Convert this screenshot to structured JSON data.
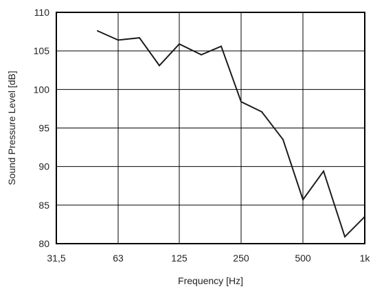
{
  "chart_data": {
    "type": "line",
    "title": "",
    "xlabel": "Frequency  [Hz]",
    "ylabel": "Sound Pressure Level  [dB]",
    "x_scale": "log2",
    "xlim": [
      31.5,
      1000
    ],
    "ylim": [
      80,
      110
    ],
    "x_ticks": [
      {
        "value": 31.5,
        "label": "31,5"
      },
      {
        "value": 63,
        "label": "63"
      },
      {
        "value": 125,
        "label": "125"
      },
      {
        "value": 250,
        "label": "250"
      },
      {
        "value": 500,
        "label": "500"
      },
      {
        "value": 1000,
        "label": "1k"
      }
    ],
    "y_ticks": [
      80,
      85,
      90,
      95,
      100,
      105,
      110
    ],
    "grid": true,
    "series": [
      {
        "color": "#1a1a1a",
        "points": [
          {
            "x": 50,
            "y": 107.6
          },
          {
            "x": 63,
            "y": 106.4
          },
          {
            "x": 80,
            "y": 106.7
          },
          {
            "x": 100,
            "y": 103.1
          },
          {
            "x": 125,
            "y": 105.9
          },
          {
            "x": 160,
            "y": 104.5
          },
          {
            "x": 200,
            "y": 105.6
          },
          {
            "x": 250,
            "y": 98.4
          },
          {
            "x": 315,
            "y": 97.1
          },
          {
            "x": 400,
            "y": 93.5
          },
          {
            "x": 500,
            "y": 85.7
          },
          {
            "x": 630,
            "y": 89.4
          },
          {
            "x": 800,
            "y": 80.9
          },
          {
            "x": 1000,
            "y": 83.5
          }
        ]
      }
    ]
  }
}
